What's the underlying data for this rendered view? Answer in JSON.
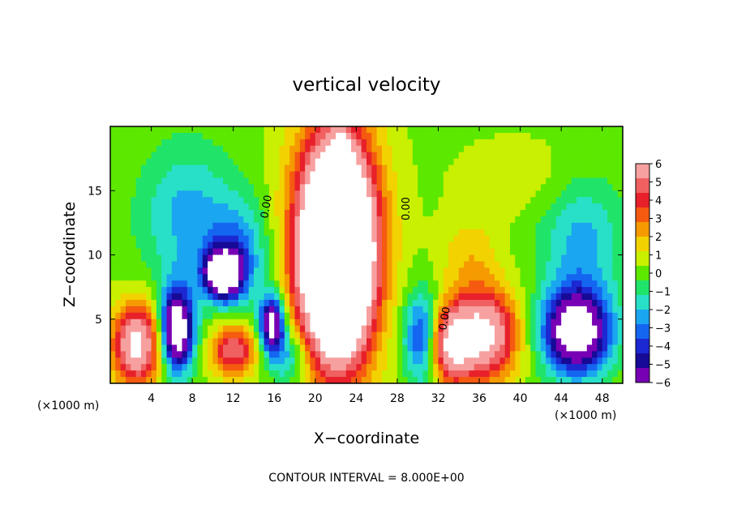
{
  "chart_data": {
    "type": "heatmap",
    "title": "vertical velocity",
    "xlabel": "X−coordinate",
    "ylabel": "Z−coordinate",
    "x_unit_left": "(×1000 m)",
    "x_unit_right": "(×1000 m)",
    "footer": "CONTOUR INTERVAL = 8.000E+00",
    "xlim": [
      0,
      50
    ],
    "ylim": [
      0,
      20
    ],
    "x_ticks": [
      "4",
      "8",
      "12",
      "16",
      "20",
      "24",
      "28",
      "32",
      "36",
      "40",
      "44",
      "48"
    ],
    "y_ticks": [
      "5",
      "10",
      "15"
    ],
    "contour_labels": [
      "0.00",
      "0.00",
      "0.00"
    ],
    "colorbar": {
      "ticks": [
        "6",
        "5",
        "4",
        "3",
        "2",
        "1",
        "0",
        "−1",
        "−2",
        "−3",
        "−4",
        "−5",
        "−6"
      ],
      "colors": [
        "#f7a0a0",
        "#f06060",
        "#e8202a",
        "#f55a10",
        "#f59a00",
        "#f2d200",
        "#c8f000",
        "#5de800",
        "#20e46a",
        "#28e0c8",
        "#1aa6f0",
        "#1466f0",
        "#1c28d2",
        "#160a96",
        "#7800b4"
      ]
    },
    "blobs": [
      {
        "x": 22,
        "z": 10.5,
        "rx": 4.0,
        "rz": 9.0,
        "v": 12
      },
      {
        "x": 22.3,
        "z": 10,
        "rx": 2.4,
        "rz": 5.8,
        "v": 12
      },
      {
        "x": 22.5,
        "z": 17,
        "rx": 0.8,
        "rz": 2.0,
        "v": 5
      },
      {
        "x": 2.6,
        "z": 3.0,
        "rx": 2.4,
        "rz": 3.2,
        "v": 7
      },
      {
        "x": 6.5,
        "z": 4.2,
        "rx": 1.6,
        "rz": 3.2,
        "v": -9
      },
      {
        "x": 11.0,
        "z": 8.5,
        "rx": 1.8,
        "rz": 1.8,
        "v": -9
      },
      {
        "x": 12.0,
        "z": 2.6,
        "rx": 2.2,
        "rz": 2.0,
        "v": 5
      },
      {
        "x": 15.8,
        "z": 4.6,
        "rx": 1.2,
        "rz": 2.2,
        "v": -8
      },
      {
        "x": 7.5,
        "z": 13,
        "rx": 4.5,
        "rz": 5.5,
        "v": -2.5
      },
      {
        "x": 12.5,
        "z": 10,
        "rx": 3.0,
        "rz": 4.0,
        "v": -3
      },
      {
        "x": 30.5,
        "z": 3.5,
        "rx": 1.8,
        "rz": 3.5,
        "v": -5
      },
      {
        "x": 33.0,
        "z": 3.0,
        "rx": 2.2,
        "rz": 3.0,
        "v": 6
      },
      {
        "x": 36.5,
        "z": 3.8,
        "rx": 3.2,
        "rz": 3.5,
        "v": 7
      },
      {
        "x": 45.5,
        "z": 4.0,
        "rx": 3.2,
        "rz": 3.2,
        "v": -9
      },
      {
        "x": 46.0,
        "z": 11,
        "rx": 4.0,
        "rz": 5.0,
        "v": -2.5
      },
      {
        "x": 17.5,
        "z": 2.0,
        "rx": 2.0,
        "rz": 2.2,
        "v": -3
      },
      {
        "x": 35,
        "z": 10,
        "rx": 3.0,
        "rz": 3.0,
        "v": 1.5
      },
      {
        "x": 40,
        "z": 16,
        "rx": 6.0,
        "rz": 3.0,
        "v": 0.8
      }
    ]
  }
}
